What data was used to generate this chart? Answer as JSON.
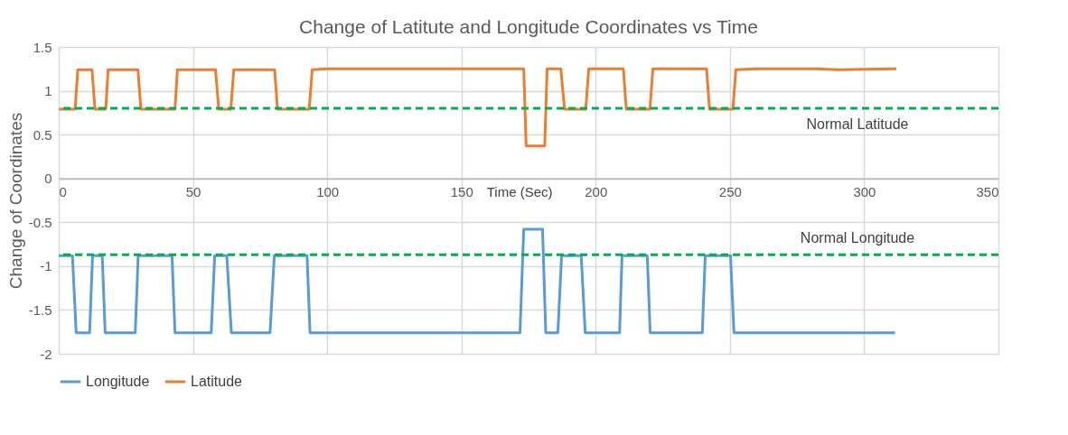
{
  "chart_data": {
    "type": "line",
    "title": "Change of Latitute and Longitude Coordinates vs Time",
    "xlabel": "Time (Sec)",
    "ylabel": "Change of Coordinates",
    "series": [
      {
        "name": "Longitude",
        "color": "#5b9bd5",
        "x": [
          0,
          5.1,
          6.5,
          11.5,
          12.6,
          16.2,
          17.3,
          28.5,
          29.6,
          42.2,
          43.3,
          56.8,
          58.1,
          62.6,
          64.3,
          78.7,
          80.3,
          92.5,
          93.6,
          171.8,
          173.2,
          180.2,
          181.4,
          185.9,
          187.3,
          194.6,
          196.1,
          208.9,
          209.8,
          219.2,
          220.3,
          239.7,
          240.8,
          250.2,
          251.5,
          311.5
        ],
        "values": [
          -0.88,
          -0.88,
          -1.76,
          -1.76,
          -0.88,
          -0.88,
          -1.76,
          -1.76,
          -0.88,
          -0.88,
          -1.76,
          -1.76,
          -0.88,
          -0.88,
          -1.76,
          -1.76,
          -0.88,
          -0.88,
          -1.76,
          -1.76,
          -0.58,
          -0.58,
          -1.76,
          -1.76,
          -0.88,
          -0.88,
          -1.76,
          -1.76,
          -0.88,
          -0.88,
          -1.76,
          -1.76,
          -0.88,
          -0.88,
          -1.76,
          -1.76
        ]
      },
      {
        "name": "Latitude",
        "color": "#ed7d31",
        "x": [
          0,
          6.1,
          7.1,
          12.4,
          13.5,
          17.5,
          18.4,
          29.5,
          30.6,
          43.3,
          44.2,
          58.4,
          59.6,
          64.1,
          65.2,
          80.4,
          81.5,
          93.3,
          94.4,
          100,
          173.2,
          174.1,
          181.0,
          181.9,
          187,
          188.4,
          196.3,
          197.4,
          210.3,
          211.4,
          220.2,
          221.3,
          241.3,
          242.4,
          251.1,
          252.2,
          260,
          282,
          290,
          312
        ],
        "values": [
          0.79,
          0.79,
          1.24,
          1.24,
          0.79,
          0.79,
          1.24,
          1.24,
          0.79,
          0.79,
          1.24,
          1.24,
          0.79,
          0.79,
          1.24,
          1.24,
          0.79,
          0.79,
          1.24,
          1.25,
          1.25,
          0.37,
          0.37,
          1.25,
          1.25,
          0.79,
          0.79,
          1.25,
          1.25,
          0.79,
          0.79,
          1.25,
          1.25,
          0.79,
          0.79,
          1.24,
          1.25,
          1.25,
          1.24,
          1.25
        ]
      }
    ],
    "ref_lines": [
      {
        "axis": "y",
        "value": 0.8,
        "label": "Normal Latitude",
        "color": "#00b050",
        "line_style": "dashed"
      },
      {
        "axis": "y",
        "value": -0.87,
        "label": "Normal Longitude",
        "color": "#00b050",
        "line_style": "dashed"
      }
    ],
    "xlim": [
      0,
      350
    ],
    "xticks": [
      0,
      50,
      100,
      150,
      200,
      250,
      300,
      350
    ],
    "ylim": [
      -2,
      1.5
    ],
    "yticks": [
      -2,
      -1.5,
      -1,
      -0.5,
      0,
      0.5,
      1,
      1.5
    ],
    "grid": true,
    "legend": "bottom",
    "marker": "none",
    "line_style": "solid"
  }
}
